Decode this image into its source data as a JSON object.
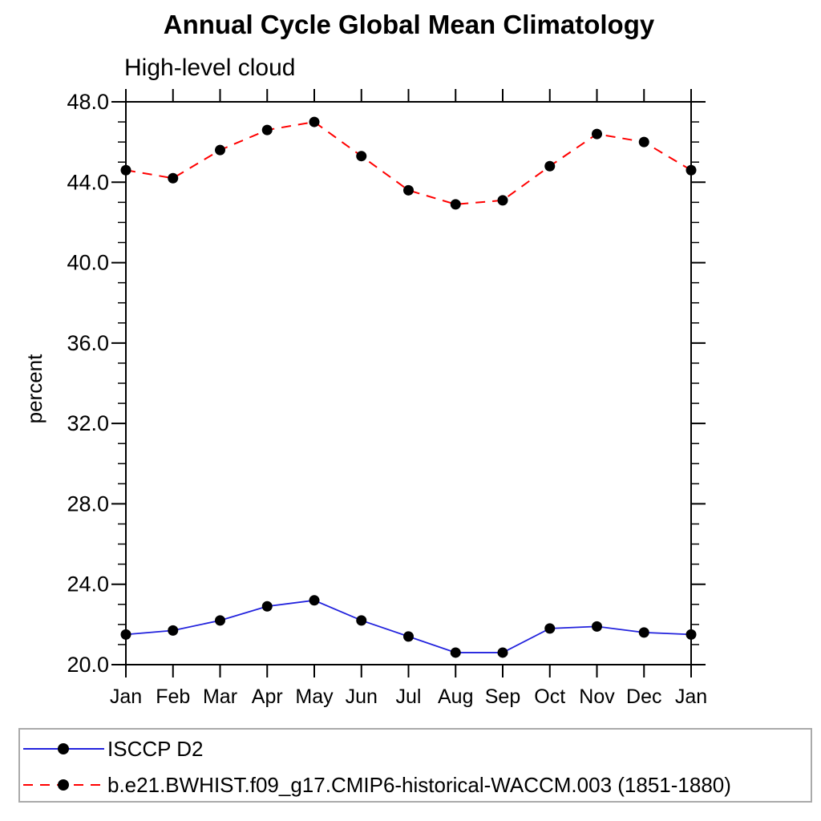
{
  "chart_data": {
    "type": "line",
    "title": "Annual Cycle Global Mean Climatology",
    "subtitle": "High-level cloud",
    "ylabel": "percent",
    "xlabel": "",
    "x_categories": [
      "Jan",
      "Feb",
      "Mar",
      "Apr",
      "May",
      "Jun",
      "Jul",
      "Aug",
      "Sep",
      "Oct",
      "Nov",
      "Dec",
      "Jan"
    ],
    "ylim": [
      20.0,
      48.0
    ],
    "y_major_step": 4.0,
    "y_minor_step": 1.0,
    "y_tick_labels": [
      "48.0",
      "44.0",
      "40.0",
      "36.0",
      "32.0",
      "28.0",
      "24.0",
      "20.0"
    ],
    "grid": false,
    "legend_position": "bottom-left-box",
    "axis_color": "#000000",
    "legend_border_color": "#aaaaaa",
    "series": [
      {
        "name": "ISCCP D2",
        "color": "#2222dd",
        "line_style": "solid",
        "marker": "filled-circle",
        "marker_color": "#000000",
        "values": [
          21.5,
          21.7,
          22.2,
          22.9,
          23.2,
          22.2,
          21.4,
          20.6,
          20.6,
          21.8,
          21.9,
          21.6,
          21.5
        ]
      },
      {
        "name": "b.e21.BWHIST.f09_g17.CMIP6-historical-WACCM.003 (1851-1880)",
        "color": "#ff0000",
        "line_style": "dashed",
        "marker": "filled-circle",
        "marker_color": "#000000",
        "values": [
          44.6,
          44.2,
          45.6,
          46.6,
          47.0,
          45.3,
          43.6,
          42.9,
          43.1,
          44.8,
          46.4,
          46.0,
          44.6
        ]
      }
    ]
  }
}
